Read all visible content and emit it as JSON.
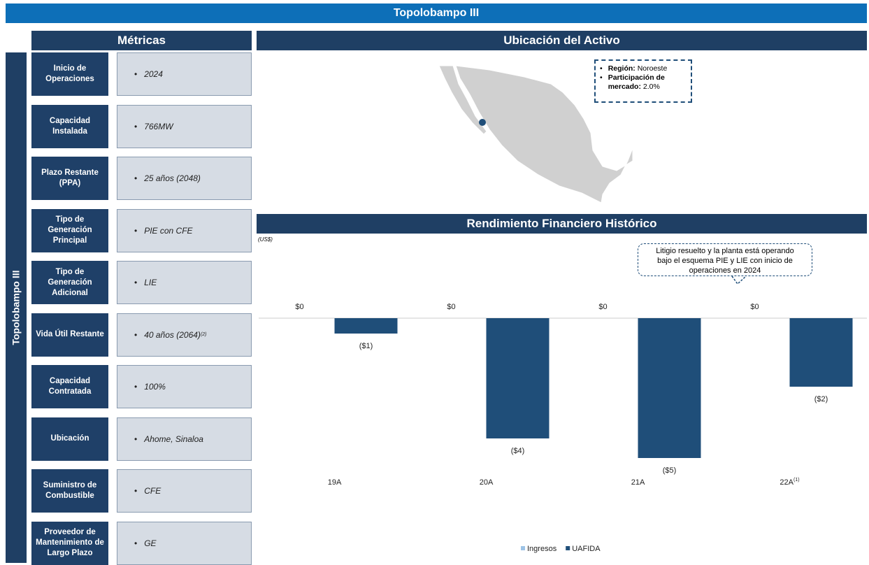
{
  "header": {
    "title": "Topolobampo III"
  },
  "side_label": "Topolobampo III",
  "metrics": {
    "title": "Métricas",
    "rows": [
      {
        "label": "Inicio de Operaciones",
        "value": "2024"
      },
      {
        "label": "Capacidad Instalada",
        "value": "766MW"
      },
      {
        "label": "Plazo Restante (PPA)",
        "value": "25 años (2048)"
      },
      {
        "label": "Tipo de Generación Principal",
        "value": "PIE con CFE"
      },
      {
        "label": "Tipo de Generación Adicional",
        "value": "LIE"
      },
      {
        "label": "Vida Útil Restante",
        "value": "40 años (2064)",
        "superscript": "(2)"
      },
      {
        "label": "Capacidad Contratada",
        "value": "100%"
      },
      {
        "label": "Ubicación",
        "value": "Ahome, Sinaloa"
      },
      {
        "label": "Suministro de Combustible",
        "value": "CFE"
      },
      {
        "label": "Proveedor de Mantenimiento de Largo Plazo",
        "value": "GE"
      }
    ]
  },
  "location": {
    "title": "Ubicación del Activo",
    "info": [
      {
        "label": "Región:",
        "value": "Noroeste"
      },
      {
        "label": "Participación de mercado:",
        "value": "2.0%"
      }
    ]
  },
  "chart_data": {
    "type": "bar",
    "title": "Rendimiento Financiero Histórico",
    "unit_label": "(US$)",
    "annotation": "Litigio resuelto y la planta está operando bajo el esquema PIE y LIE con inicio de operaciones en 2024",
    "categories": [
      "19A",
      "20A",
      "21A",
      "22A"
    ],
    "category_superscripts": [
      null,
      null,
      null,
      "(1)"
    ],
    "series": [
      {
        "name": "Ingresos",
        "color": "#9dc3e6",
        "values": [
          0,
          0,
          0,
          0
        ],
        "value_labels": [
          "$0",
          "$0",
          "$0",
          "$0"
        ]
      },
      {
        "name": "UAFIDA",
        "color": "#1f4e79",
        "values": [
          -0.55,
          -4.3,
          -5.0,
          -2.45
        ],
        "value_labels": [
          "($1)",
          "($4)",
          "($5)",
          "($2)"
        ]
      }
    ],
    "ylim": [
      -7.5,
      2.5
    ],
    "legend": "bottom"
  }
}
